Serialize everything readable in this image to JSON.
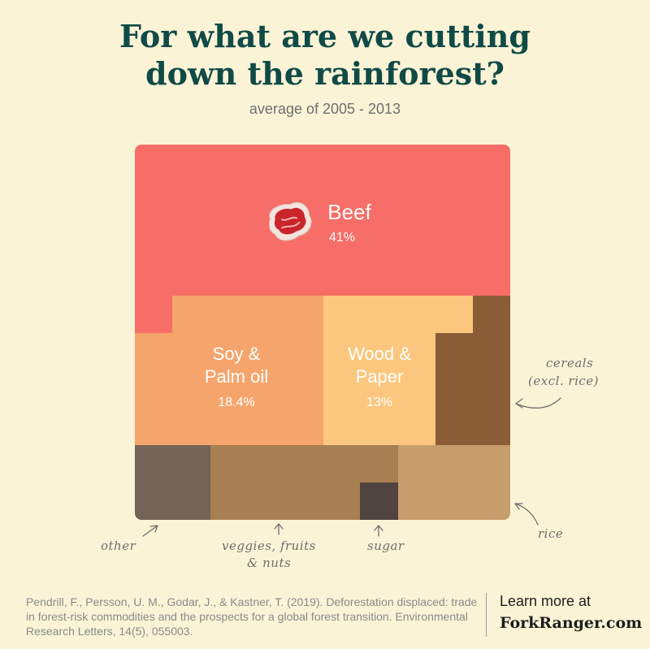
{
  "header": {
    "title_line1": "For what are we cutting",
    "title_line2": "down the rainforest?",
    "subtitle": "average of 2005 - 2013"
  },
  "chart_data": {
    "type": "treemap",
    "title": "For what are we cutting down the rainforest?",
    "subtitle": "average of 2005 - 2013",
    "unit": "%",
    "items": [
      {
        "key": "beef",
        "name": "Beef",
        "value": 41,
        "value_label": "41%",
        "color": "#f76d67",
        "icon": "steak-icon"
      },
      {
        "key": "soy",
        "name": "Soy & Palm oil",
        "name_line1": "Soy &",
        "name_line2": "Palm oil",
        "value": 18.4,
        "value_label": "18.4%",
        "color": "#f5a56c"
      },
      {
        "key": "wood",
        "name": "Wood & Paper",
        "name_line1": "Wood &",
        "name_line2": "Paper",
        "value": 13,
        "value_label": "13%",
        "color": "#fbc77e"
      },
      {
        "key": "cereals",
        "name": "cereals (excl. rice)",
        "name_line1": "cereals",
        "name_line2": "(excl. rice)",
        "color": "#8b5d36"
      },
      {
        "key": "other",
        "name": "other",
        "color": "#746455"
      },
      {
        "key": "veggies",
        "name": "veggies, fruits & nuts",
        "name_line1": "veggies, fruits",
        "name_line2": "& nuts",
        "color": "#a77f52"
      },
      {
        "key": "sugar",
        "name": "sugar",
        "color": "#4f4440"
      },
      {
        "key": "rice",
        "name": "rice",
        "color": "#c89d6c"
      }
    ]
  },
  "footer": {
    "citation": "Pendrill, F., Persson, U. M., Godar, J., & Kastner, T. (2019). Deforestation displaced: trade in forest-risk commodities and the prospects for a global forest transition. Environmental Research Letters, 14(5), 055003.",
    "learn_more": "Learn more at",
    "brand": "ForkRanger.com"
  }
}
